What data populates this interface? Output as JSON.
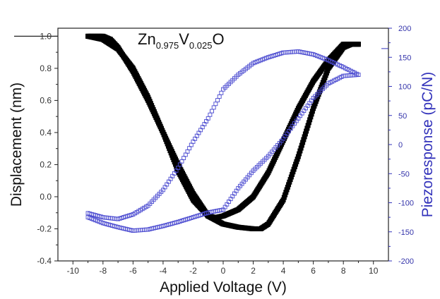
{
  "chart_data": {
    "type": "scatter",
    "title": "",
    "annotation": {
      "parts": [
        {
          "text": "Zn",
          "sub": false
        },
        {
          "text": "0.975",
          "sub": true
        },
        {
          "text": "V",
          "sub": false
        },
        {
          "text": "0.025",
          "sub": true
        },
        {
          "text": "O",
          "sub": false
        }
      ]
    },
    "xlabel": "Applied Voltage (V)",
    "ylabel_left": "Displacement (nm)",
    "ylabel_right": "Piezoresponse (pC/N)",
    "xlim": [
      -11,
      11
    ],
    "ylim_left": [
      -0.4,
      1.05
    ],
    "ylim_right": [
      -200,
      200
    ],
    "x_ticks": [
      "-10",
      "-8",
      "-6",
      "-4",
      "-2",
      "0",
      "2",
      "4",
      "6",
      "8",
      "10"
    ],
    "y_left_ticks": [
      "-0.4",
      "-0.2",
      "0.0",
      "0.2",
      "0.4",
      "0.6",
      "0.8",
      "1.0"
    ],
    "y_right_ticks": [
      "-200",
      "-150",
      "-100",
      "-50",
      "0",
      "50",
      "100",
      "150",
      "200"
    ],
    "grid": false,
    "colors": {
      "displacement": "#000000",
      "piezoresponse": "#4a4ad0",
      "right_axis": "#3333bb"
    },
    "series": [
      {
        "axis": "left",
        "style": "thick-markers",
        "x": [
          -9.0,
          -8.0,
          -7.5,
          -7.0,
          -6.0,
          -5.0,
          -4.0,
          -3.0,
          -2.0,
          -1.0,
          0.0,
          1.0,
          2.0,
          2.5,
          3.0,
          4.0,
          5.0,
          6.0,
          7.0,
          8.0,
          8.5,
          9.0
        ],
        "values": [
          1.0,
          1.0,
          0.98,
          0.93,
          0.78,
          0.6,
          0.4,
          0.2,
          0.02,
          -0.12,
          -0.17,
          -0.19,
          -0.2,
          -0.2,
          -0.17,
          -0.02,
          0.25,
          0.55,
          0.8,
          0.93,
          0.95,
          0.95
        ]
      },
      {
        "axis": "left",
        "style": "thick-markers",
        "x": [
          9.0,
          8.0,
          7.0,
          6.0,
          5.0,
          4.0,
          3.0,
          2.0,
          1.0,
          0.0,
          -0.5,
          -1.0,
          -2.0,
          -3.0,
          -4.0,
          -5.0,
          -6.0,
          -7.0,
          -8.0,
          -9.0
        ],
        "values": [
          0.95,
          0.95,
          0.85,
          0.72,
          0.55,
          0.35,
          0.15,
          0.0,
          -0.08,
          -0.12,
          -0.13,
          -0.12,
          -0.02,
          0.16,
          0.4,
          0.62,
          0.8,
          0.92,
          0.98,
          1.0
        ]
      },
      {
        "axis": "right",
        "style": "open-markers",
        "x": [
          -9.0,
          -8.0,
          -7.0,
          -6.0,
          -5.0,
          -4.0,
          -3.0,
          -2.0,
          -1.0,
          0.0,
          1.0,
          2.0,
          3.0,
          4.0,
          5.0,
          6.0,
          7.0,
          8.0,
          9.0
        ],
        "values": [
          -125,
          -135,
          -142,
          -148,
          -146,
          -140,
          -133,
          -125,
          -117,
          -112,
          -75,
          -45,
          -20,
          10,
          45,
          80,
          105,
          118,
          120
        ]
      },
      {
        "axis": "right",
        "style": "open-markers",
        "x": [
          9.0,
          8.0,
          7.0,
          6.0,
          5.0,
          4.0,
          3.0,
          2.0,
          1.0,
          0.0,
          -1.0,
          -2.0,
          -3.0,
          -4.0,
          -5.0,
          -6.0,
          -7.0,
          -8.0,
          -9.0
        ],
        "values": [
          120,
          133,
          145,
          155,
          160,
          158,
          150,
          140,
          120,
          95,
          45,
          5,
          -40,
          -78,
          -105,
          -120,
          -128,
          -125,
          -118
        ]
      }
    ]
  }
}
